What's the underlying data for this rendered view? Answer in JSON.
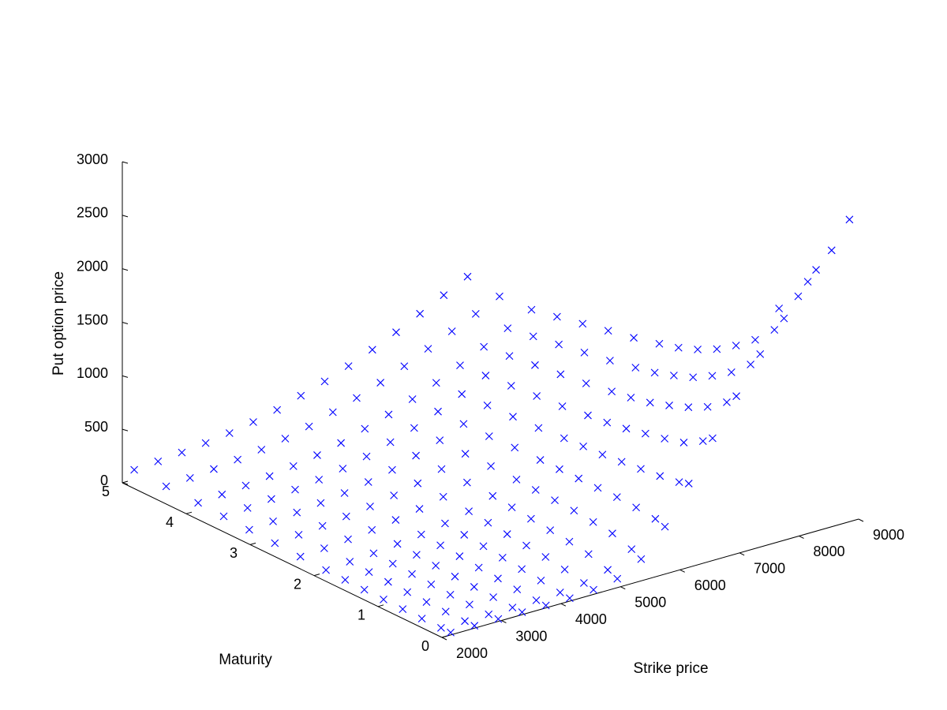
{
  "chart_data": {
    "type": "scatter",
    "projection": "3d",
    "marker": "x",
    "marker_color": "#0000ff",
    "grid": false,
    "xlabel": "Strike price",
    "ylabel": "Maturity",
    "zlabel": "Put  option price",
    "xlim": [
      2000,
      9000
    ],
    "ylim": [
      0,
      5
    ],
    "zlim": [
      0,
      3000
    ],
    "x_ticks": [
      "2000",
      "3000",
      "4000",
      "5000",
      "6000",
      "7000",
      "8000",
      "9000"
    ],
    "y_ticks": [
      "0",
      "1",
      "2",
      "3",
      "4",
      "5"
    ],
    "z_ticks": [
      "0",
      "500",
      "1000",
      "1500",
      "2000",
      "2500",
      "3000"
    ],
    "point_columns": [
      "strike",
      "maturity",
      "put_price"
    ],
    "points": [
      [
        2200,
        0.05,
        0
      ],
      [
        2600,
        0.05,
        0
      ],
      [
        3000,
        0.05,
        0
      ],
      [
        3400,
        0.05,
        0
      ],
      [
        3800,
        0.05,
        0
      ],
      [
        4200,
        0.05,
        5
      ],
      [
        4600,
        0.05,
        20
      ],
      [
        5000,
        0.05,
        60
      ],
      [
        5400,
        0.05,
        180
      ],
      [
        5800,
        0.05,
        420
      ],
      [
        6200,
        0.05,
        760
      ],
      [
        6600,
        0.05,
        1120
      ],
      [
        7000,
        0.05,
        1450
      ],
      [
        7400,
        0.05,
        1780
      ],
      [
        7800,
        0.05,
        2050
      ],
      [
        8200,
        0.05,
        2330
      ],
      [
        8600,
        0.05,
        2560
      ],
      [
        8900,
        0.05,
        2800
      ],
      [
        2200,
        0.2,
        0
      ],
      [
        2600,
        0.2,
        0
      ],
      [
        3000,
        0.2,
        0
      ],
      [
        3400,
        0.2,
        0
      ],
      [
        3800,
        0.2,
        5
      ],
      [
        4200,
        0.2,
        15
      ],
      [
        4600,
        0.2,
        40
      ],
      [
        5000,
        0.2,
        100
      ],
      [
        5400,
        0.2,
        230
      ],
      [
        5800,
        0.2,
        450
      ],
      [
        6200,
        0.2,
        730
      ],
      [
        6600,
        0.2,
        1050
      ],
      [
        7000,
        0.2,
        1350
      ],
      [
        7400,
        0.2,
        1640
      ],
      [
        7800,
        0.2,
        1900
      ],
      [
        8200,
        0.2,
        2150
      ],
      [
        8500,
        0.2,
        2350
      ],
      [
        2200,
        0.5,
        0
      ],
      [
        2600,
        0.5,
        2
      ],
      [
        3000,
        0.5,
        5
      ],
      [
        3400,
        0.5,
        10
      ],
      [
        3800,
        0.5,
        20
      ],
      [
        4200,
        0.5,
        40
      ],
      [
        4600,
        0.5,
        80
      ],
      [
        5000,
        0.5,
        160
      ],
      [
        5400,
        0.5,
        290
      ],
      [
        5800,
        0.5,
        470
      ],
      [
        6200,
        0.5,
        700
      ],
      [
        6600,
        0.5,
        950
      ],
      [
        7000,
        0.5,
        1220
      ],
      [
        7400,
        0.5,
        1480
      ],
      [
        7800,
        0.5,
        1720
      ],
      [
        8200,
        0.5,
        1950
      ],
      [
        2200,
        0.8,
        2
      ],
      [
        2600,
        0.8,
        5
      ],
      [
        3000,
        0.8,
        10
      ],
      [
        3400,
        0.8,
        20
      ],
      [
        3800,
        0.8,
        35
      ],
      [
        4200,
        0.8,
        60
      ],
      [
        4600,
        0.8,
        110
      ],
      [
        5000,
        0.8,
        190
      ],
      [
        5400,
        0.8,
        310
      ],
      [
        5800,
        0.8,
        480
      ],
      [
        6200,
        0.8,
        680
      ],
      [
        6600,
        0.8,
        900
      ],
      [
        7000,
        0.8,
        1130
      ],
      [
        7400,
        0.8,
        1360
      ],
      [
        7800,
        0.8,
        1580
      ],
      [
        2200,
        1.1,
        5
      ],
      [
        2600,
        1.1,
        10
      ],
      [
        3000,
        1.1,
        20
      ],
      [
        3400,
        1.1,
        30
      ],
      [
        3800,
        1.1,
        50
      ],
      [
        4200,
        1.1,
        80
      ],
      [
        4600,
        1.1,
        130
      ],
      [
        5000,
        1.1,
        210
      ],
      [
        5400,
        1.1,
        330
      ],
      [
        5800,
        1.1,
        480
      ],
      [
        6200,
        1.1,
        660
      ],
      [
        6600,
        1.1,
        860
      ],
      [
        7000,
        1.1,
        1060
      ],
      [
        7400,
        1.1,
        1260
      ],
      [
        7800,
        1.1,
        1460
      ],
      [
        2200,
        1.4,
        10
      ],
      [
        2600,
        1.4,
        20
      ],
      [
        3000,
        1.4,
        30
      ],
      [
        3400,
        1.4,
        45
      ],
      [
        3800,
        1.4,
        70
      ],
      [
        4200,
        1.4,
        100
      ],
      [
        4600,
        1.4,
        150
      ],
      [
        5000,
        1.4,
        230
      ],
      [
        5400,
        1.4,
        340
      ],
      [
        5800,
        1.4,
        480
      ],
      [
        6200,
        1.4,
        640
      ],
      [
        6600,
        1.4,
        820
      ],
      [
        7000,
        1.4,
        1000
      ],
      [
        7400,
        1.4,
        1190
      ],
      [
        7800,
        1.4,
        1370
      ],
      [
        2200,
        1.7,
        15
      ],
      [
        2600,
        1.7,
        25
      ],
      [
        3000,
        1.7,
        40
      ],
      [
        3400,
        1.7,
        60
      ],
      [
        3800,
        1.7,
        85
      ],
      [
        4200,
        1.7,
        120
      ],
      [
        4600,
        1.7,
        170
      ],
      [
        5000,
        1.7,
        250
      ],
      [
        5400,
        1.7,
        350
      ],
      [
        5800,
        1.7,
        480
      ],
      [
        6200,
        1.7,
        630
      ],
      [
        6600,
        1.7,
        790
      ],
      [
        7000,
        1.7,
        960
      ],
      [
        7400,
        1.7,
        1130
      ],
      [
        7800,
        1.7,
        1300
      ],
      [
        2200,
        2.0,
        20
      ],
      [
        2600,
        2.0,
        35
      ],
      [
        3000,
        2.0,
        50
      ],
      [
        3400,
        2.0,
        75
      ],
      [
        3800,
        2.0,
        100
      ],
      [
        4200,
        2.0,
        140
      ],
      [
        4600,
        2.0,
        190
      ],
      [
        5000,
        2.0,
        270
      ],
      [
        5400,
        2.0,
        360
      ],
      [
        5800,
        2.0,
        480
      ],
      [
        6200,
        2.0,
        620
      ],
      [
        6600,
        2.0,
        770
      ],
      [
        7000,
        2.0,
        930
      ],
      [
        7400,
        2.0,
        1090
      ],
      [
        7800,
        2.0,
        1250
      ],
      [
        2200,
        2.4,
        30
      ],
      [
        2600,
        2.4,
        45
      ],
      [
        3000,
        2.4,
        65
      ],
      [
        3400,
        2.4,
        90
      ],
      [
        3800,
        2.4,
        120
      ],
      [
        4200,
        2.4,
        160
      ],
      [
        4600,
        2.4,
        210
      ],
      [
        5000,
        2.4,
        280
      ],
      [
        5400,
        2.4,
        370
      ],
      [
        5800,
        2.4,
        480
      ],
      [
        6200,
        2.4,
        600
      ],
      [
        6600,
        2.4,
        740
      ],
      [
        7000,
        2.4,
        890
      ],
      [
        7400,
        2.4,
        1040
      ],
      [
        7800,
        2.4,
        1190
      ],
      [
        2200,
        2.8,
        40
      ],
      [
        2600,
        2.8,
        55
      ],
      [
        3000,
        2.8,
        75
      ],
      [
        3400,
        2.8,
        100
      ],
      [
        3800,
        2.8,
        130
      ],
      [
        4200,
        2.8,
        170
      ],
      [
        4600,
        2.8,
        220
      ],
      [
        5000,
        2.8,
        290
      ],
      [
        5400,
        2.8,
        370
      ],
      [
        5800,
        2.8,
        470
      ],
      [
        6200,
        2.8,
        590
      ],
      [
        6600,
        2.8,
        720
      ],
      [
        7000,
        2.8,
        860
      ],
      [
        7400,
        2.8,
        1000
      ],
      [
        7800,
        2.8,
        1140
      ],
      [
        2200,
        3.2,
        50
      ],
      [
        2600,
        3.2,
        65
      ],
      [
        3000,
        3.2,
        85
      ],
      [
        3400,
        3.2,
        110
      ],
      [
        3800,
        3.2,
        140
      ],
      [
        4200,
        3.2,
        180
      ],
      [
        4600,
        3.2,
        230
      ],
      [
        5000,
        3.2,
        300
      ],
      [
        5400,
        3.2,
        380
      ],
      [
        5800,
        3.2,
        470
      ],
      [
        6200,
        3.2,
        580
      ],
      [
        6600,
        3.2,
        700
      ],
      [
        7000,
        3.2,
        830
      ],
      [
        7400,
        3.2,
        960
      ],
      [
        7800,
        3.2,
        1090
      ],
      [
        2200,
        3.6,
        60
      ],
      [
        2600,
        3.6,
        75
      ],
      [
        3000,
        3.6,
        95
      ],
      [
        3400,
        3.6,
        120
      ],
      [
        3800,
        3.6,
        150
      ],
      [
        4200,
        3.6,
        190
      ],
      [
        4600,
        3.6,
        240
      ],
      [
        5000,
        3.6,
        310
      ],
      [
        5400,
        3.6,
        380
      ],
      [
        5800,
        3.6,
        470
      ],
      [
        6200,
        3.6,
        570
      ],
      [
        6600,
        3.6,
        680
      ],
      [
        7000,
        3.6,
        800
      ],
      [
        7400,
        3.6,
        920
      ],
      [
        7800,
        3.6,
        1040
      ],
      [
        2200,
        4.0,
        70
      ],
      [
        2600,
        4.0,
        85
      ],
      [
        3000,
        4.0,
        105
      ],
      [
        3400,
        4.0,
        130
      ],
      [
        3800,
        4.0,
        160
      ],
      [
        4200,
        4.0,
        200
      ],
      [
        4600,
        4.0,
        250
      ],
      [
        5000,
        4.0,
        320
      ],
      [
        5400,
        4.0,
        390
      ],
      [
        5800,
        4.0,
        470
      ],
      [
        6200,
        4.0,
        560
      ],
      [
        6600,
        4.0,
        660
      ],
      [
        7000,
        4.0,
        770
      ],
      [
        7400,
        4.0,
        880
      ],
      [
        7800,
        4.0,
        990
      ],
      [
        2200,
        4.5,
        80
      ],
      [
        2600,
        4.5,
        95
      ],
      [
        3000,
        4.5,
        115
      ],
      [
        3400,
        4.5,
        140
      ],
      [
        3800,
        4.5,
        170
      ],
      [
        4200,
        4.5,
        210
      ],
      [
        4600,
        4.5,
        260
      ],
      [
        5000,
        4.5,
        330
      ],
      [
        5400,
        4.5,
        400
      ],
      [
        5800,
        4.5,
        480
      ],
      [
        6200,
        4.5,
        570
      ],
      [
        6600,
        4.5,
        670
      ],
      [
        7000,
        4.5,
        770
      ],
      [
        7400,
        4.5,
        870
      ],
      [
        7800,
        4.5,
        970
      ],
      [
        2200,
        5.0,
        90
      ],
      [
        2600,
        5.0,
        105
      ],
      [
        3000,
        5.0,
        125
      ],
      [
        3400,
        5.0,
        150
      ],
      [
        3800,
        5.0,
        180
      ],
      [
        4200,
        5.0,
        220
      ],
      [
        4600,
        5.0,
        270
      ],
      [
        5000,
        5.0,
        340
      ],
      [
        5400,
        5.0,
        410
      ],
      [
        5800,
        5.0,
        490
      ],
      [
        6200,
        5.0,
        580
      ],
      [
        6600,
        5.0,
        680
      ],
      [
        7000,
        5.0,
        790
      ],
      [
        7400,
        5.0,
        900
      ],
      [
        7800,
        5.0,
        1010
      ]
    ]
  }
}
